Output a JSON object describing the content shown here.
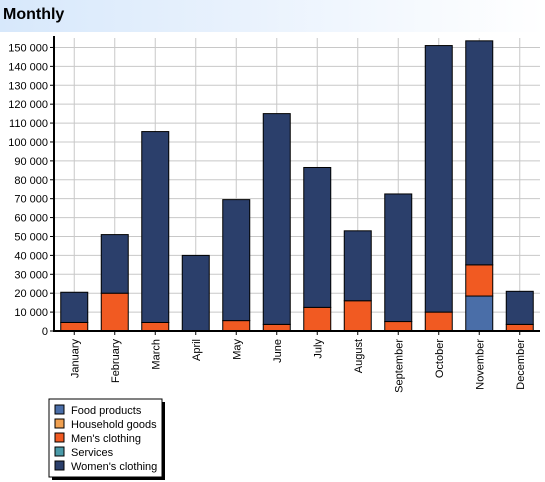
{
  "header": {
    "title": "Monthly"
  },
  "chart_data": {
    "type": "bar",
    "stacked": true,
    "title": "Monthly",
    "xlabel": "",
    "ylabel": "",
    "ylim": [
      0,
      155000
    ],
    "yticks": [
      0,
      10000,
      20000,
      30000,
      40000,
      50000,
      60000,
      70000,
      80000,
      90000,
      100000,
      110000,
      120000,
      130000,
      140000,
      150000
    ],
    "ytick_labels": [
      "0",
      "10 000",
      "20 000",
      "30 000",
      "40 000",
      "50 000",
      "60 000",
      "70 000",
      "80 000",
      "90 000",
      "100 000",
      "110 000",
      "120 000",
      "130 000",
      "140 000",
      "150 000"
    ],
    "grid": true,
    "legend_position": "bottom-left",
    "categories": [
      "January",
      "February",
      "March",
      "April",
      "May",
      "June",
      "July",
      "August",
      "September",
      "October",
      "November",
      "December"
    ],
    "series": [
      {
        "name": "Food products",
        "color": "#4a6ea8",
        "values": [
          0,
          0,
          0,
          0,
          0,
          0,
          0,
          0,
          0,
          0,
          18500,
          0
        ]
      },
      {
        "name": "Household goods",
        "color": "#f0a050",
        "values": [
          0,
          0,
          0,
          0,
          0,
          0,
          0,
          0,
          0,
          0,
          0,
          0
        ]
      },
      {
        "name": "Men's clothing",
        "color": "#f15a22",
        "values": [
          4500,
          20000,
          4500,
          0,
          5500,
          3500,
          12500,
          16000,
          5000,
          10000,
          16500,
          3500
        ]
      },
      {
        "name": "Services",
        "color": "#4a9aa8",
        "values": [
          0,
          0,
          0,
          0,
          0,
          0,
          0,
          0,
          0,
          0,
          0,
          0
        ]
      },
      {
        "name": "Women's clothing",
        "color": "#2b3f6b",
        "values": [
          16000,
          31000,
          101000,
          40000,
          64000,
          111500,
          74000,
          37000,
          67500,
          141000,
          118500,
          17500
        ]
      }
    ]
  }
}
